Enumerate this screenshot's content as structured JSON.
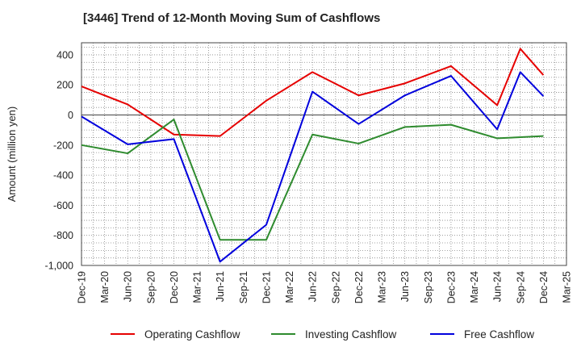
{
  "chart_data": {
    "type": "line",
    "title": "[3446]  Trend of 12-Month Moving Sum of Cashflows",
    "xlabel": "",
    "ylabel": "Amount (million yen)",
    "categories": [
      "Dec-19",
      "Mar-20",
      "Jun-20",
      "Sep-20",
      "Dec-20",
      "Mar-21",
      "Jun-21",
      "Sep-21",
      "Dec-21",
      "Mar-22",
      "Jun-22",
      "Sep-22",
      "Dec-22",
      "Mar-23",
      "Jun-23",
      "Sep-23",
      "Dec-23",
      "Mar-24",
      "Jun-24",
      "Sep-24",
      "Dec-24",
      "Mar-25"
    ],
    "ylim": [
      -1000,
      480
    ],
    "yticks": [
      400,
      200,
      0,
      -200,
      -400,
      -600,
      -800,
      -1000
    ],
    "ytick_labels": [
      "400",
      "200",
      "0",
      "-200",
      "-400",
      "-600",
      "-800",
      "-1,000"
    ],
    "grid": true,
    "legend_position": "bottom",
    "series": [
      {
        "name": "Operating Cashflow",
        "color": "#e60000",
        "x": [
          "Dec-19",
          "Jun-20",
          "Dec-20",
          "Jun-21",
          "Dec-21",
          "Jun-22",
          "Dec-22",
          "Jun-23",
          "Dec-23",
          "Jun-24",
          "Sep-24",
          "Dec-24"
        ],
        "values": [
          190,
          70,
          -130,
          -140,
          95,
          285,
          130,
          210,
          325,
          65,
          440,
          265
        ]
      },
      {
        "name": "Investing Cashflow",
        "color": "#2e8b2e",
        "x": [
          "Dec-19",
          "Jun-20",
          "Dec-20",
          "Jun-21",
          "Dec-21",
          "Jun-22",
          "Dec-22",
          "Jun-23",
          "Dec-23",
          "Jun-24",
          "Dec-24"
        ],
        "values": [
          -200,
          -255,
          -30,
          -830,
          -830,
          -130,
          -190,
          -80,
          -65,
          -155,
          -140
        ]
      },
      {
        "name": "Free Cashflow",
        "color": "#0000dd",
        "x": [
          "Dec-19",
          "Jun-20",
          "Dec-20",
          "Jun-21",
          "Dec-21",
          "Jun-22",
          "Dec-22",
          "Jun-23",
          "Dec-23",
          "Jun-24",
          "Sep-24",
          "Dec-24"
        ],
        "values": [
          -10,
          -195,
          -160,
          -975,
          -730,
          155,
          -60,
          130,
          260,
          -95,
          285,
          125
        ]
      }
    ]
  }
}
